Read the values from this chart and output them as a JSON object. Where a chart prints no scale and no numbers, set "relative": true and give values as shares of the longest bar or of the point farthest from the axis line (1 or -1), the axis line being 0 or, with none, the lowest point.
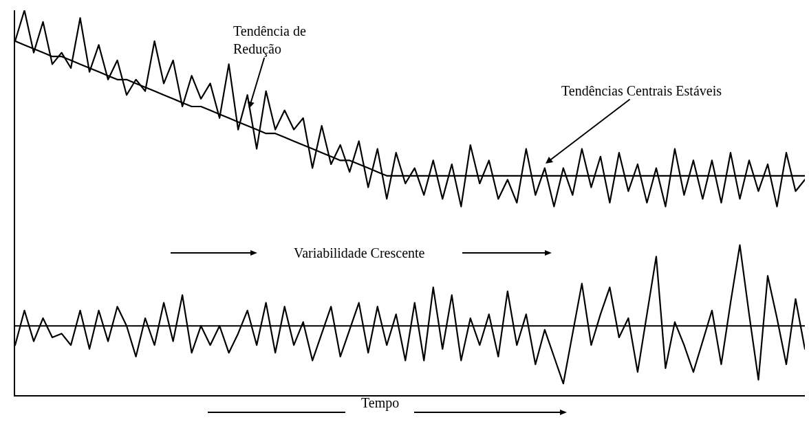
{
  "chart_data": {
    "type": "line",
    "relative": true,
    "categories": [
      null,
      null,
      null,
      null,
      null,
      null,
      null,
      null,
      null,
      null,
      null,
      null,
      null,
      null,
      null,
      null,
      null,
      null,
      null,
      null,
      null,
      null,
      null,
      null,
      null,
      null,
      null,
      null,
      null,
      null,
      null,
      null,
      null,
      null,
      null,
      null,
      null,
      null,
      null,
      null,
      null,
      null,
      null,
      null,
      null,
      null,
      null,
      null,
      null,
      null,
      null,
      null,
      null,
      null,
      null,
      null,
      null,
      null,
      null,
      null,
      null,
      null,
      null,
      null,
      null,
      null,
      null,
      null,
      null,
      null,
      null,
      null,
      null,
      null,
      null,
      null,
      null,
      null,
      null,
      null,
      null,
      null,
      null,
      null,
      null,
      null
    ],
    "series": [
      {
        "color": "#000000",
        "values": [
          0.92,
          1.0,
          0.89,
          0.97,
          0.86,
          0.89,
          0.85,
          0.98,
          0.84,
          0.91,
          0.82,
          0.87,
          0.78,
          0.82,
          0.79,
          0.92,
          0.81,
          0.87,
          0.75,
          0.83,
          0.77,
          0.81,
          0.72,
          0.86,
          0.69,
          0.78,
          0.64,
          0.79,
          0.69,
          0.74,
          0.69,
          0.72,
          0.59,
          0.7,
          0.6,
          0.65,
          0.58,
          0.66,
          0.54,
          0.64,
          0.51,
          0.63,
          0.55,
          0.59,
          0.52,
          0.61,
          0.51,
          0.6,
          0.49,
          0.65,
          0.55,
          0.61,
          0.51,
          0.56,
          0.5,
          0.64,
          0.52,
          0.59,
          0.49,
          0.59,
          0.52,
          0.64,
          0.54,
          0.62,
          0.5,
          0.63,
          0.53,
          0.6,
          0.5,
          0.59,
          0.49,
          0.64,
          0.52,
          0.61,
          0.51,
          0.61,
          0.5,
          0.63,
          0.51,
          0.61,
          0.53,
          0.6,
          0.49,
          0.63,
          0.53,
          0.56
        ]
      },
      {
        "color": "#000000",
        "values": [
          0.92,
          0.91,
          0.9,
          0.89,
          0.88,
          0.88,
          0.87,
          0.86,
          0.85,
          0.84,
          0.83,
          0.82,
          0.82,
          0.81,
          0.8,
          0.79,
          0.78,
          0.77,
          0.76,
          0.75,
          0.75,
          0.74,
          0.73,
          0.72,
          0.71,
          0.7,
          0.69,
          0.68,
          0.68,
          0.67,
          0.66,
          0.65,
          0.64,
          0.63,
          0.62,
          0.61,
          0.61,
          0.6,
          0.59,
          0.58,
          0.57,
          0.57,
          0.57,
          0.57,
          0.57,
          0.57,
          0.57,
          0.57,
          0.57,
          0.57,
          0.57,
          0.57,
          0.57,
          0.57,
          0.57,
          0.57,
          0.57,
          0.57,
          0.57,
          0.57,
          0.57,
          0.57,
          0.57,
          0.57,
          0.57,
          0.57,
          0.57,
          0.57,
          0.57,
          0.57,
          0.57,
          0.57,
          0.57,
          0.57,
          0.57,
          0.57,
          0.57,
          0.57,
          0.57,
          0.57,
          0.57,
          0.57,
          0.57,
          0.57,
          0.57,
          0.57
        ]
      },
      {
        "color": "#000000",
        "values": [
          0.13,
          0.22,
          0.14,
          0.2,
          0.15,
          0.16,
          0.13,
          0.22,
          0.12,
          0.22,
          0.14,
          0.23,
          0.18,
          0.1,
          0.2,
          0.13,
          0.24,
          0.14,
          0.26,
          0.11,
          0.18,
          0.13,
          0.18,
          0.11,
          0.16,
          0.22,
          0.13,
          0.24,
          0.11,
          0.23,
          0.13,
          0.19,
          0.09,
          0.16,
          0.23,
          0.1,
          0.17,
          0.24,
          0.11,
          0.23,
          0.13,
          0.21,
          0.09,
          0.24,
          0.09,
          0.28,
          0.12,
          0.26,
          0.09,
          0.2,
          0.13,
          0.21,
          0.1,
          0.27,
          0.13,
          0.21,
          0.08,
          0.17,
          0.1,
          0.03,
          0.16,
          0.29,
          0.13,
          0.21,
          0.28,
          0.15,
          0.2,
          0.06,
          0.21,
          0.36,
          0.07,
          0.19,
          0.13,
          0.06,
          0.14,
          0.22,
          0.08,
          0.24,
          0.39,
          0.21,
          0.04,
          0.31,
          0.2,
          0.08,
          0.25,
          0.12
        ]
      }
    ],
    "ref_lines": [
      {
        "axis": "y",
        "value": 0.18,
        "color": "#000000"
      }
    ],
    "annotations": [
      "Tendência de\nRedução",
      "Tendências Centrais Estáveis",
      "Variabilidade Crescente",
      "Tempo"
    ]
  }
}
